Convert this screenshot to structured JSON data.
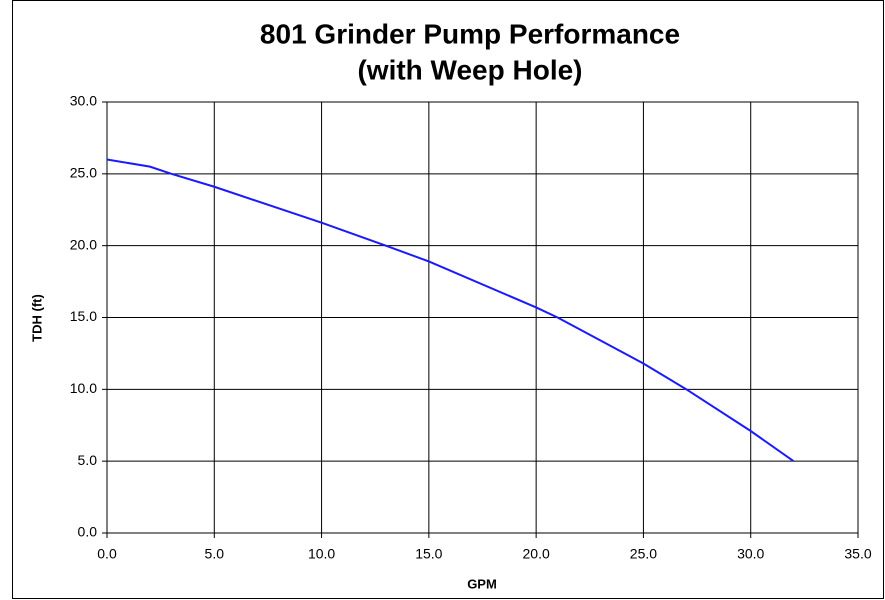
{
  "chart_data": {
    "type": "line",
    "title": "801 Grinder Pump Performance",
    "subtitle": "(with Weep Hole)",
    "x_label": "GPM",
    "y_label": "TDH (ft)",
    "x": [
      0,
      2,
      3,
      5,
      10,
      13,
      15,
      20,
      21,
      25,
      27,
      30,
      32
    ],
    "series": [
      {
        "color": "#1a1aff",
        "values": [
          26.0,
          25.5,
          25.0,
          24.1,
          21.6,
          20.0,
          18.9,
          15.7,
          15.0,
          11.8,
          10.0,
          7.1,
          5.0
        ]
      }
    ],
    "xlim": [
      0,
      35
    ],
    "ylim": [
      0,
      30
    ],
    "xticks": [
      {
        "value": 0,
        "label": "0.0"
      },
      {
        "value": 5,
        "label": "5.0"
      },
      {
        "value": 10,
        "label": "10.0"
      },
      {
        "value": 15,
        "label": "15.0"
      },
      {
        "value": 20,
        "label": "20.0"
      },
      {
        "value": 25,
        "label": "25.0"
      },
      {
        "value": 30,
        "label": "30.0"
      },
      {
        "value": 35,
        "label": "35.0"
      }
    ],
    "yticks": [
      {
        "value": 0,
        "label": "0.0"
      },
      {
        "value": 5,
        "label": "5.0"
      },
      {
        "value": 10,
        "label": "10.0"
      },
      {
        "value": 15,
        "label": "15.0"
      },
      {
        "value": 20,
        "label": "20.0"
      },
      {
        "value": 25,
        "label": "25.0"
      },
      {
        "value": 30,
        "label": "30.0"
      }
    ],
    "grid": true
  }
}
